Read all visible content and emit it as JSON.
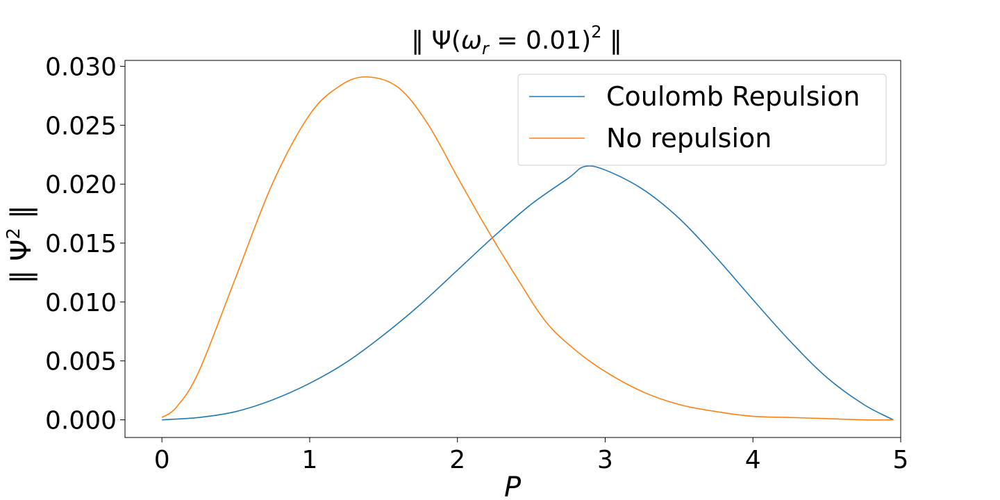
{
  "chart_data": {
    "type": "line",
    "title": "‖ Ψ(ω_r = 0.01)² ‖",
    "title_parts": {
      "prefix": "‖ Ψ(",
      "omega": "ω",
      "sub": "r",
      "mid": " = 0.01)",
      "sup": "2",
      "suffix": " ‖"
    },
    "xlabel": "P",
    "ylabel": "‖ Ψ² ‖",
    "ylabel_parts": {
      "prefix": "‖ Ψ",
      "sup": "2",
      "suffix": " ‖"
    },
    "xlim": [
      -0.25,
      5.0
    ],
    "ylim": [
      -0.0015,
      0.0305
    ],
    "xticks": [
      0,
      1,
      2,
      3,
      4,
      5
    ],
    "xtick_labels": [
      "0",
      "1",
      "2",
      "3",
      "4",
      "5"
    ],
    "yticks": [
      0.0,
      0.005,
      0.01,
      0.015,
      0.02,
      0.025,
      0.03
    ],
    "ytick_labels": [
      "0.000",
      "0.005",
      "0.010",
      "0.015",
      "0.020",
      "0.025",
      "0.030"
    ],
    "grid": false,
    "legend_position": "top-right",
    "series": [
      {
        "name": "Coulomb Repulsion",
        "color": "#1f77b4",
        "x": [
          0.0,
          0.25,
          0.5,
          0.75,
          1.0,
          1.25,
          1.5,
          1.75,
          2.0,
          2.25,
          2.5,
          2.75,
          2.86,
          3.0,
          3.25,
          3.5,
          3.75,
          4.0,
          4.25,
          4.5,
          4.75,
          4.95
        ],
        "y": [
          0.0,
          0.0002,
          0.0007,
          0.0017,
          0.0031,
          0.0049,
          0.0072,
          0.0098,
          0.0127,
          0.0156,
          0.0183,
          0.0205,
          0.0215,
          0.0212,
          0.0196,
          0.0171,
          0.0138,
          0.0102,
          0.0067,
          0.0036,
          0.0013,
          0.0
        ]
      },
      {
        "name": "No repulsion",
        "color": "#ff7f0e",
        "x": [
          0.0,
          0.1,
          0.25,
          0.5,
          0.75,
          1.0,
          1.2,
          1.38,
          1.6,
          1.8,
          2.0,
          2.2,
          2.4,
          2.6,
          2.8,
          3.0,
          3.25,
          3.5,
          3.75,
          4.0,
          4.25,
          4.5,
          4.75,
          4.95
        ],
        "y": [
          0.0002,
          0.0011,
          0.0041,
          0.0121,
          0.0201,
          0.0259,
          0.0283,
          0.0291,
          0.0282,
          0.0251,
          0.0206,
          0.0162,
          0.0121,
          0.0083,
          0.0059,
          0.0041,
          0.0024,
          0.0013,
          0.0007,
          0.0003,
          0.0002,
          0.0001,
          0.0,
          0.0
        ]
      }
    ]
  }
}
